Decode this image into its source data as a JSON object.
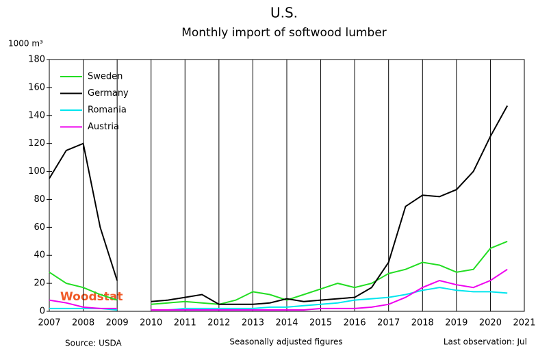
{
  "chart_data": {
    "type": "line",
    "title": "U.S.",
    "subtitle": "Monthly import of softwood lumber",
    "y_label": "1000 m³",
    "source": "Source: USDA",
    "note": "Seasonally adjusted figures",
    "last_observation": "Last observation: Jul",
    "logo": "Woodstat",
    "x": [
      2007,
      2007.5,
      2008,
      2008.5,
      2009,
      2009.5,
      2010,
      2010.5,
      2011,
      2011.5,
      2012,
      2012.5,
      2013,
      2013.5,
      2014,
      2014.5,
      2015,
      2015.5,
      2016,
      2016.5,
      2017,
      2017.5,
      2018,
      2018.5,
      2019,
      2019.5,
      2020,
      2020.5
    ],
    "series": [
      {
        "name": "Sweden",
        "color": "#22dd22",
        "values": [
          28,
          20,
          17,
          12,
          8,
          null,
          5,
          6,
          7,
          6,
          5,
          8,
          14,
          12,
          8,
          12,
          16,
          20,
          17,
          20,
          27,
          30,
          35,
          33,
          28,
          30,
          45,
          50
        ]
      },
      {
        "name": "Germany",
        "color": "#000000",
        "values": [
          95,
          115,
          120,
          60,
          22,
          null,
          7,
          8,
          10,
          12,
          5,
          5,
          5,
          6,
          9,
          7,
          8,
          9,
          10,
          17,
          35,
          75,
          83,
          82,
          87,
          100,
          125,
          147
        ]
      },
      {
        "name": "Romania",
        "color": "#00e5ee",
        "values": [
          2,
          2,
          2,
          2,
          1,
          null,
          1,
          1,
          2,
          2,
          2,
          2,
          2,
          3,
          3,
          4,
          5,
          6,
          8,
          9,
          10,
          12,
          15,
          17,
          15,
          14,
          14,
          13
        ]
      },
      {
        "name": "Austria",
        "color": "#ee00ee",
        "values": [
          8,
          6,
          3,
          2,
          2,
          null,
          1,
          1,
          1,
          1,
          1,
          1,
          1,
          1,
          1,
          1,
          2,
          2,
          2,
          3,
          5,
          10,
          17,
          22,
          19,
          17,
          22,
          30
        ]
      }
    ],
    "xlim": [
      2007,
      2021
    ],
    "xticks": [
      2007,
      2008,
      2009,
      2010,
      2011,
      2012,
      2013,
      2014,
      2015,
      2016,
      2017,
      2018,
      2019,
      2020,
      2021
    ],
    "ylim": [
      0,
      180
    ],
    "yticks": [
      0,
      20,
      40,
      60,
      80,
      100,
      120,
      140,
      160,
      180
    ],
    "grid": "x",
    "legend": "upper left"
  }
}
